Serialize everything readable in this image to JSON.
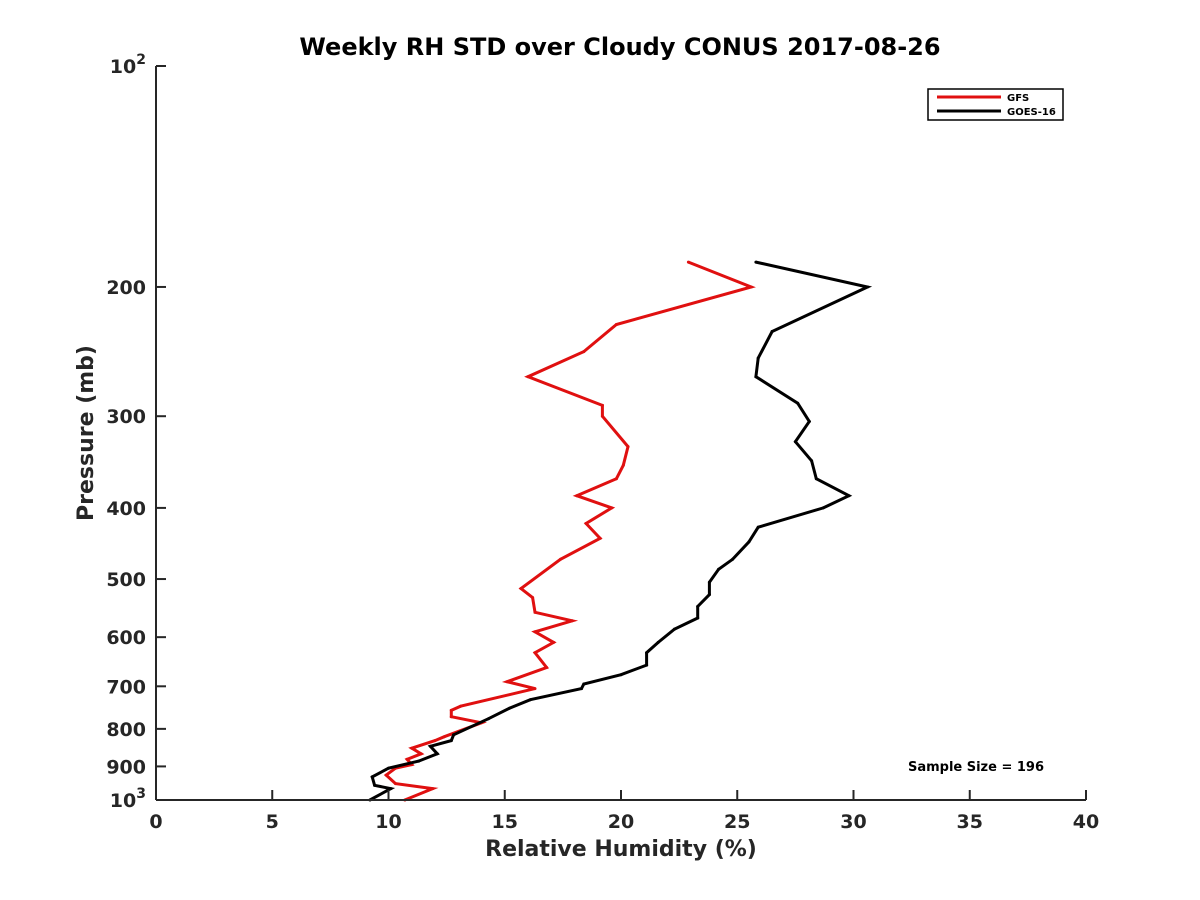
{
  "chart_data": {
    "type": "line",
    "title": "Weekly RH STD over Cloudy CONUS 2017-08-26",
    "xlabel": "Relative Humidity (%)",
    "ylabel": "Pressure (mb)",
    "xlim": [
      0,
      40
    ],
    "ylim": [
      100,
      1000
    ],
    "yscale": "log",
    "y_reversed": true,
    "xticks": [
      "0",
      "5",
      "10",
      "15",
      "20",
      "25",
      "30",
      "35",
      "40"
    ],
    "yticks": [
      {
        "value": 100,
        "label": "10",
        "sup": "2"
      },
      {
        "value": 200,
        "label": "200",
        "sup": ""
      },
      {
        "value": 300,
        "label": "300",
        "sup": ""
      },
      {
        "value": 400,
        "label": "400",
        "sup": ""
      },
      {
        "value": 500,
        "label": "500",
        "sup": ""
      },
      {
        "value": 600,
        "label": "600",
        "sup": ""
      },
      {
        "value": 700,
        "label": "700",
        "sup": ""
      },
      {
        "value": 800,
        "label": "800",
        "sup": ""
      },
      {
        "value": 900,
        "label": "900",
        "sup": ""
      },
      {
        "value": 1000,
        "label": "10",
        "sup": "3"
      }
    ],
    "legend_position": "top-right",
    "annotation": "Sample Size = 196",
    "series": [
      {
        "name": "GFS",
        "color": "#e01010",
        "points": [
          [
            22.9,
            185
          ],
          [
            25.6,
            200
          ],
          [
            19.8,
            225
          ],
          [
            18.4,
            245
          ],
          [
            16.0,
            265
          ],
          [
            19.2,
            290
          ],
          [
            19.2,
            300
          ],
          [
            20.3,
            330
          ],
          [
            20.1,
            350
          ],
          [
            19.8,
            365
          ],
          [
            18.1,
            385
          ],
          [
            19.6,
            400
          ],
          [
            18.5,
            420
          ],
          [
            19.1,
            440
          ],
          [
            17.4,
            470
          ],
          [
            15.7,
            515
          ],
          [
            16.2,
            530
          ],
          [
            16.3,
            555
          ],
          [
            17.9,
            570
          ],
          [
            16.3,
            590
          ],
          [
            17.1,
            610
          ],
          [
            16.3,
            630
          ],
          [
            16.8,
            660
          ],
          [
            15.1,
            690
          ],
          [
            16.3,
            705
          ],
          [
            13.1,
            745
          ],
          [
            12.7,
            755
          ],
          [
            12.7,
            770
          ],
          [
            14.0,
            785
          ],
          [
            12.4,
            820
          ],
          [
            12.0,
            830
          ],
          [
            11.0,
            850
          ],
          [
            11.4,
            865
          ],
          [
            10.8,
            880
          ],
          [
            11.0,
            895
          ],
          [
            10.3,
            905
          ],
          [
            9.9,
            925
          ],
          [
            10.3,
            950
          ],
          [
            11.9,
            965
          ],
          [
            10.7,
            1000
          ]
        ]
      },
      {
        "name": "GOES-16",
        "color": "#000000",
        "points": [
          [
            25.8,
            185
          ],
          [
            30.6,
            200
          ],
          [
            26.5,
            230
          ],
          [
            25.9,
            250
          ],
          [
            25.8,
            265
          ],
          [
            27.6,
            288
          ],
          [
            28.1,
            305
          ],
          [
            27.5,
            325
          ],
          [
            28.2,
            345
          ],
          [
            28.4,
            365
          ],
          [
            29.8,
            385
          ],
          [
            28.7,
            400
          ],
          [
            25.9,
            425
          ],
          [
            25.5,
            445
          ],
          [
            24.8,
            470
          ],
          [
            24.2,
            485
          ],
          [
            23.8,
            505
          ],
          [
            23.8,
            525
          ],
          [
            23.3,
            545
          ],
          [
            23.3,
            565
          ],
          [
            22.3,
            585
          ],
          [
            21.6,
            610
          ],
          [
            21.1,
            630
          ],
          [
            21.1,
            655
          ],
          [
            20.0,
            675
          ],
          [
            18.4,
            695
          ],
          [
            18.3,
            705
          ],
          [
            16.1,
            730
          ],
          [
            15.2,
            750
          ],
          [
            14.3,
            775
          ],
          [
            12.8,
            815
          ],
          [
            12.7,
            830
          ],
          [
            11.8,
            845
          ],
          [
            12.1,
            865
          ],
          [
            11.3,
            885
          ],
          [
            10.0,
            905
          ],
          [
            9.3,
            930
          ],
          [
            9.4,
            955
          ],
          [
            10.1,
            965
          ],
          [
            9.2,
            1000
          ]
        ]
      }
    ]
  }
}
